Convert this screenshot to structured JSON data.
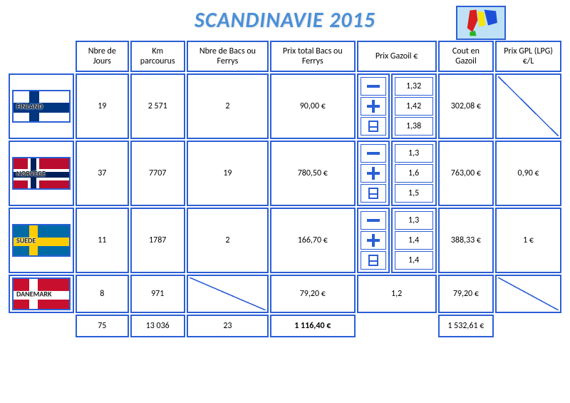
{
  "title": "SCANDINAVIE 2015",
  "headers": {
    "days": "Nbre de Jours",
    "km": "Km parcourus",
    "ferries": "Nbre de Bacs ou Ferrys",
    "ferry_price": "Prix total Bacs ou Ferrys",
    "diesel_price": "Prix Gazoil €",
    "diesel_cost": "Cout en Gazoil",
    "lpg": "Prix GPL (LPG) €/L"
  },
  "rows": [
    {
      "country": "FINLAND",
      "flag_class": "flag-fi",
      "days": "19",
      "km": "2 571",
      "ferries": "2",
      "ferry_price": "90,00 €",
      "diesel_min": "1,32",
      "diesel_max": "1,42",
      "diesel_avg": "1,38",
      "diesel_cost": "302,08 €",
      "lpg": "",
      "lpg_diag": true
    },
    {
      "country": "NORVEGE",
      "flag_class": "flag-no",
      "days": "37",
      "km": "7707",
      "ferries": "19",
      "ferry_price": "780,50 €",
      "diesel_min": "1,3",
      "diesel_max": "1,6",
      "diesel_avg": "1,5",
      "diesel_cost": "763,00 €",
      "lpg": "0,90 €",
      "lpg_diag": false
    },
    {
      "country": "SUEDE",
      "flag_class": "flag-se",
      "days": "11",
      "km": "1787",
      "ferries": "2",
      "ferry_price": "166,70 €",
      "diesel_min": "1,3",
      "diesel_max": "1,4",
      "diesel_avg": "1,4",
      "diesel_cost": "388,33 €",
      "lpg": "1 €",
      "lpg_diag": false
    }
  ],
  "denmark": {
    "country": "DANEMARK",
    "flag_class": "flag-dk",
    "days": "8",
    "km": "971",
    "ferries": "",
    "ferries_diag": true,
    "ferry_price": "79,20 €",
    "diesel": "1,2",
    "diesel_cost": "79,20 €",
    "lpg": "",
    "lpg_diag": true
  },
  "totals": {
    "days": "75",
    "km": "13 036",
    "ferries": "23",
    "ferry_price": "1 116,40 €",
    "diesel_cost": "1 532,61 €"
  },
  "colors": {
    "border": "#2b5fd6",
    "title": "#4a8fd8"
  }
}
